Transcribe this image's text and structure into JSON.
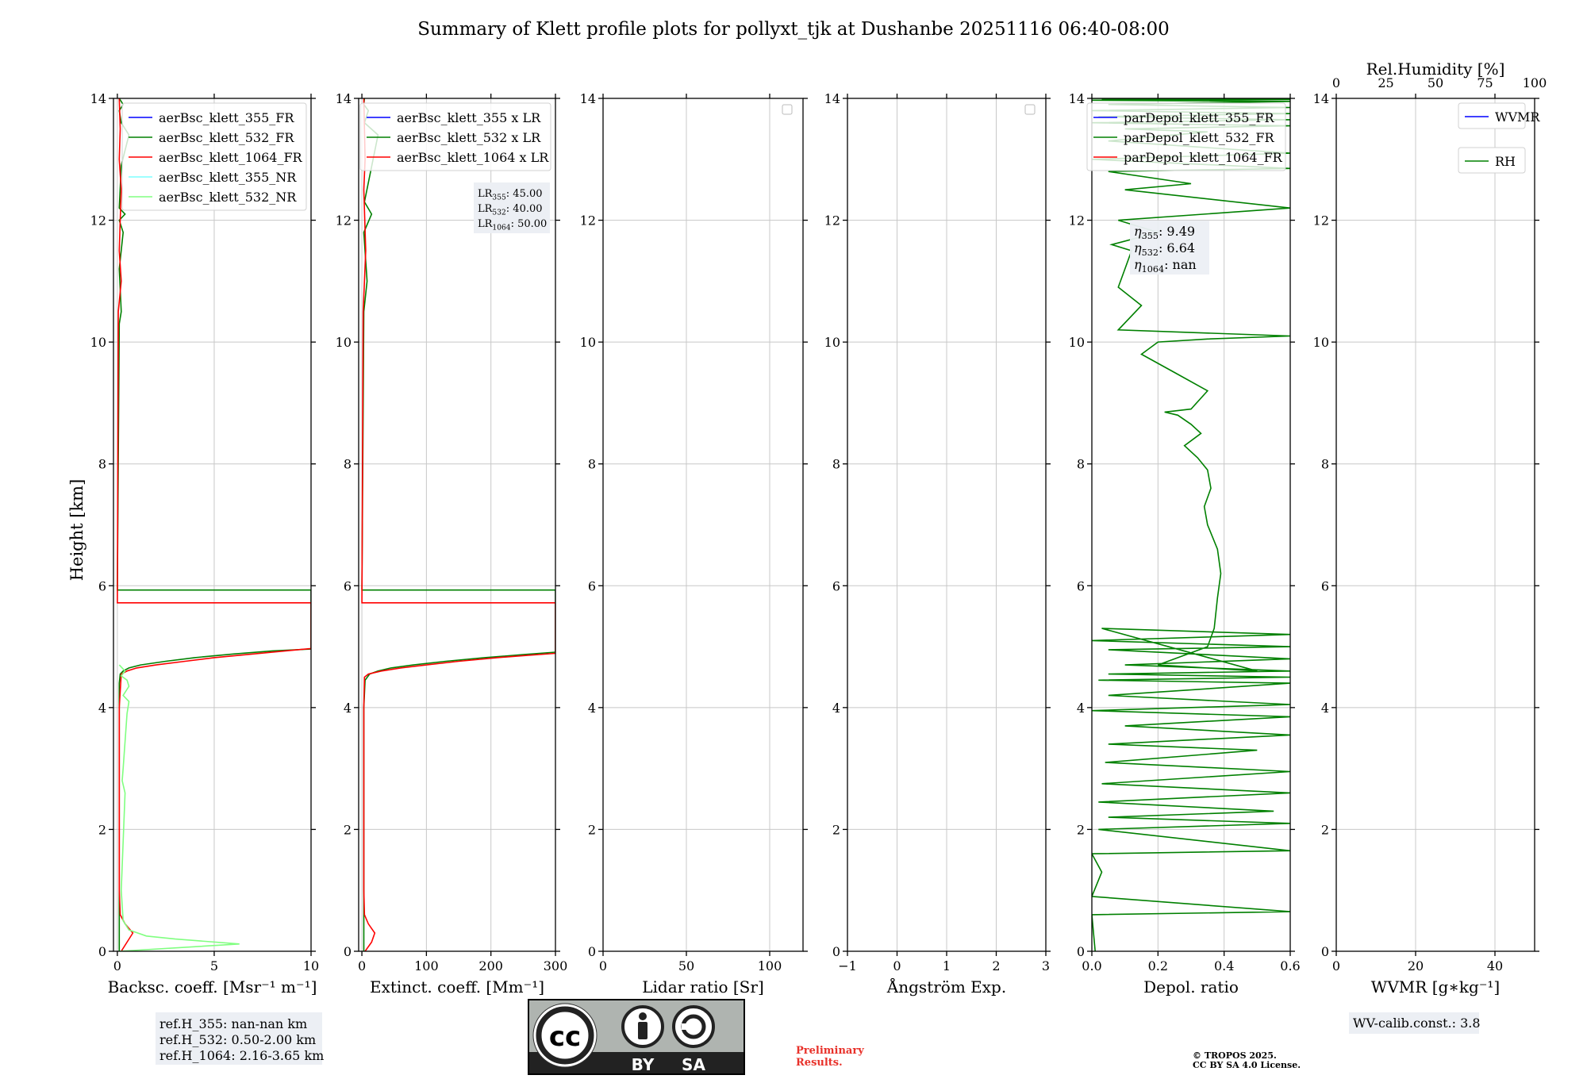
{
  "title": "Summary of Klett profile plots for pollyxt_tjk at Dushanbe 20251116 06:40-08:00",
  "y_axis_label": "Height [km]",
  "notes": {
    "ref_h": [
      "ref.H_355: nan-nan km",
      "ref.H_532: 0.50-2.00 km",
      "ref.H_1064: 2.16-3.65 km"
    ],
    "lidar_ratios": [
      "LR355: 45.00",
      "LR532: 40.00",
      "LR1064: 50.00"
    ],
    "eta": [
      "η355: 9.49",
      "η532: 6.64",
      "η1064: nan"
    ],
    "wv_calib": "WV-calib.const.: 3.8",
    "preliminary": [
      "Preliminary",
      "Results."
    ],
    "copyright": [
      "© TROPOS 2025.",
      "CC BY SA 4.0 License."
    ],
    "license_badge": [
      "cc",
      "BY",
      "SA"
    ]
  },
  "colors": {
    "blue": "#0000ff",
    "green": "#008000",
    "red": "#ff0000",
    "cyan": "#7fffff",
    "lightgreen": "#80ff80"
  },
  "chart_data": [
    {
      "type": "line",
      "id": "backscatter",
      "xlabel": "Backsc. coeff. [Msr⁻¹ m⁻¹]",
      "ylabel": "Height [km]",
      "xlim": [
        -0.2,
        10
      ],
      "ylim": [
        0,
        14
      ],
      "xticks": [
        0,
        5,
        10
      ],
      "xtick_labels": [
        "0",
        "5",
        "10"
      ],
      "yticks": [
        0,
        2,
        4,
        6,
        8,
        10,
        12,
        14
      ],
      "grid": true,
      "legend": "top-right",
      "series": [
        {
          "name": "aerBsc_klett_355_FR",
          "color": "#0000ff",
          "x": [],
          "y": []
        },
        {
          "name": "aerBsc_klett_532_FR",
          "color": "#008000",
          "x": [
            0.1,
            0.1,
            0.1,
            0.1,
            0.1,
            0.1,
            0.15,
            0.3,
            0.6,
            1.2,
            2.5,
            4,
            6,
            8,
            10,
            10,
            0,
            0.1,
            0.2,
            0.1,
            0.3,
            0.1,
            0.4,
            0.1,
            0.2,
            0.6,
            0.2,
            0.1,
            0.3,
            0.1
          ],
          "y": [
            0,
            1,
            2,
            3,
            4,
            4.4,
            4.55,
            4.6,
            4.65,
            4.7,
            4.76,
            4.82,
            4.88,
            4.93,
            4.96,
            5.93,
            5.93,
            10.3,
            10.5,
            11.2,
            11.8,
            12.0,
            12.1,
            12.2,
            12.9,
            13.4,
            13.6,
            13.8,
            13.9,
            14
          ]
        },
        {
          "name": "aerBsc_klett_1064_FR",
          "color": "#ff0000",
          "x": [
            0.2,
            0.5,
            0.8,
            0.4,
            0.15,
            0.1,
            0.1,
            0.1,
            0.2,
            0.5,
            1,
            2,
            3.5,
            5,
            7,
            9,
            10,
            10,
            0,
            0.05,
            0.2,
            0.1,
            0.15,
            0.2,
            0.1,
            0.15,
            0.1
          ],
          "y": [
            0,
            0.15,
            0.3,
            0.45,
            0.6,
            1,
            2,
            4,
            4.55,
            4.6,
            4.65,
            4.7,
            4.76,
            4.82,
            4.88,
            4.94,
            4.97,
            5.72,
            5.72,
            10.5,
            11,
            11.5,
            12,
            12.5,
            13,
            13.5,
            14
          ]
        },
        {
          "name": "aerBsc_klett_355_NR",
          "color": "#7fffff",
          "x": [],
          "y": []
        },
        {
          "name": "aerBsc_klett_532_NR",
          "color": "#80ff80",
          "x": [
            0.1,
            6.3,
            3,
            1.5,
            0.6,
            0.3,
            0.2,
            0.4,
            0.25,
            0.3,
            0.5,
            0.6,
            0.3,
            0.6,
            0.5,
            0.2,
            0.4,
            0.1
          ],
          "y": [
            0,
            0.12,
            0.2,
            0.25,
            0.35,
            0.5,
            1,
            2.6,
            2.8,
            3,
            3.9,
            4.1,
            4.2,
            4.35,
            4.45,
            4.52,
            4.6,
            4.7
          ]
        }
      ]
    },
    {
      "type": "line",
      "id": "extinction",
      "xlabel": "Extinct. coeff. [Mm⁻¹]",
      "xlim": [
        -5,
        300
      ],
      "ylim": [
        0,
        14
      ],
      "xticks": [
        0,
        100,
        200,
        300
      ],
      "xtick_labels": [
        "0",
        "100",
        "200",
        "300"
      ],
      "yticks": [
        0,
        2,
        4,
        6,
        8,
        10,
        12,
        14
      ],
      "grid": true,
      "legend": "top-right",
      "series": [
        {
          "name": "aerBsc_klett_355 x LR",
          "color": "#0000ff",
          "x": [],
          "y": []
        },
        {
          "name": "aerBsc_klett_532 x LR",
          "color": "#008000",
          "x": [
            3,
            3,
            3,
            3,
            3,
            5,
            12,
            25,
            45,
            80,
            130,
            190,
            250,
            300,
            300,
            0,
            3,
            8,
            3,
            15,
            4,
            25,
            4,
            10,
            3,
            4
          ],
          "y": [
            0,
            1,
            2,
            3,
            4,
            4.45,
            4.55,
            4.6,
            4.65,
            4.7,
            4.76,
            4.82,
            4.87,
            4.91,
            5.93,
            5.93,
            10.5,
            11,
            11.8,
            12.1,
            12.3,
            13.4,
            13.6,
            13.8,
            13.9,
            14
          ]
        },
        {
          "name": "aerBsc_klett_1064 x LR",
          "color": "#ff0000",
          "x": [
            5,
            15,
            20,
            10,
            4,
            3,
            3,
            4,
            10,
            30,
            60,
            100,
            150,
            210,
            260,
            300,
            300,
            0,
            2,
            6,
            3,
            5,
            3
          ],
          "y": [
            0,
            0.15,
            0.3,
            0.45,
            0.6,
            1,
            4,
            4.5,
            4.55,
            4.6,
            4.65,
            4.7,
            4.76,
            4.82,
            4.86,
            4.89,
            5.72,
            5.72,
            10.5,
            11.5,
            12.5,
            13,
            14
          ]
        }
      ]
    },
    {
      "type": "line",
      "id": "lidar_ratio",
      "xlabel": "Lidar ratio [Sr]",
      "xlim": [
        0,
        120
      ],
      "ylim": [
        0,
        14
      ],
      "xticks": [
        0,
        50,
        100
      ],
      "xtick_labels": [
        "0",
        "50",
        "100"
      ],
      "yticks": [
        0,
        2,
        4,
        6,
        8,
        10,
        12,
        14
      ],
      "grid": true,
      "legend": "top-right",
      "series": []
    },
    {
      "type": "line",
      "id": "angstrom",
      "xlabel": "Ångström Exp.",
      "xlim": [
        -1,
        3
      ],
      "ylim": [
        0,
        14
      ],
      "xticks": [
        -1,
        0,
        1,
        2,
        3
      ],
      "xtick_labels": [
        "−1",
        "0",
        "1",
        "2",
        "3"
      ],
      "yticks": [
        0,
        2,
        4,
        6,
        8,
        10,
        12,
        14
      ],
      "grid": true,
      "legend": "top-right",
      "series": []
    },
    {
      "type": "line",
      "id": "depol",
      "xlabel": "Depol. ratio",
      "xlim": [
        0,
        0.6
      ],
      "ylim": [
        0,
        14
      ],
      "xticks": [
        0,
        0.2,
        0.4,
        0.6
      ],
      "xtick_labels": [
        "0.0",
        "0.2",
        "0.4",
        "0.6"
      ],
      "yticks": [
        0,
        2,
        4,
        6,
        8,
        10,
        12,
        14
      ],
      "grid": true,
      "legend": "top-right",
      "series": [
        {
          "name": "parDepol_klett_355_FR",
          "color": "#0000ff",
          "x": [],
          "y": []
        },
        {
          "name": "parDepol_klett_532_FR",
          "color": "#008000",
          "x": [
            0.01,
            0.0,
            0.6,
            0.0,
            0.03,
            0.0,
            0.6,
            0.02,
            0.6,
            0.05,
            0.55,
            0.02,
            0.6,
            0.03,
            0.6,
            0.04,
            0.5,
            0.05,
            0.6,
            0.1,
            0.6,
            0.0,
            0.6,
            0.05,
            0.6,
            0.02,
            0.6,
            0.05,
            0.6,
            0.1,
            0.6,
            0.05,
            0.6,
            0.0,
            0.6,
            0.03,
            0.5,
            0.2,
            0.35,
            0.37,
            0.38,
            0.39,
            0.38,
            0.35,
            0.34,
            0.36,
            0.35,
            0.32,
            0.28,
            0.33,
            0.3,
            0.26,
            0.22,
            0.3,
            0.35,
            0.25,
            0.15,
            0.2,
            0.35,
            0.6,
            0.08,
            0.15,
            0.08,
            0.1,
            0.12,
            0.06,
            0.2,
            0.08,
            0.6,
            0.1,
            0.3,
            0.05,
            0.6,
            0.0,
            0.6,
            0.05,
            0.35,
            0.1,
            0.6,
            0.0,
            0.6,
            0.02,
            0.6,
            0.0,
            0.6,
            0.05,
            0.6,
            0.0,
            0.6,
            0.03,
            0.6,
            0.0,
            0.6
          ],
          "y": [
            0,
            0.6,
            0.65,
            0.9,
            1.3,
            1.6,
            1.65,
            2.0,
            2.1,
            2.2,
            2.3,
            2.45,
            2.6,
            2.75,
            2.95,
            3.1,
            3.3,
            3.4,
            3.55,
            3.7,
            3.85,
            3.95,
            4.05,
            4.2,
            4.4,
            4.45,
            4.5,
            4.55,
            4.6,
            4.7,
            4.8,
            4.95,
            5.0,
            5.1,
            5.2,
            5.3,
            4.6,
            4.7,
            5.0,
            5.3,
            5.8,
            6.2,
            6.6,
            7.0,
            7.3,
            7.6,
            7.9,
            8.1,
            8.3,
            8.5,
            8.65,
            8.8,
            8.85,
            8.9,
            9.2,
            9.5,
            9.8,
            10.0,
            10.05,
            10.1,
            10.2,
            10.6,
            10.9,
            11.2,
            11.5,
            11.6,
            11.8,
            12.0,
            12.2,
            12.5,
            12.6,
            12.8,
            12.85,
            13.0,
            13.1,
            13.3,
            13.45,
            13.5,
            13.55,
            13.6,
            13.65,
            13.7,
            13.75,
            13.8,
            13.85,
            13.9,
            13.95,
            13.97,
            13.98,
            13.99,
            14.0,
            14.0,
            14.0
          ]
        },
        {
          "name": "parDepol_klett_1064_FR",
          "color": "#ff0000",
          "x": [],
          "y": []
        }
      ]
    },
    {
      "type": "line",
      "id": "wvmr",
      "xlabel": "WVMR [g∗kg⁻¹]",
      "xlim": [
        0,
        50
      ],
      "ylim": [
        0,
        14
      ],
      "xticks": [
        0,
        20,
        40
      ],
      "xtick_labels": [
        "0",
        "20",
        "40"
      ],
      "top_axis": {
        "label": "Rel.Humidity [%]",
        "lim": [
          0,
          100
        ],
        "ticks": [
          0,
          25,
          50,
          75,
          100
        ],
        "tick_labels": [
          "0",
          "25",
          "50",
          "75",
          "100"
        ]
      },
      "yticks": [
        0,
        2,
        4,
        6,
        8,
        10,
        12,
        14
      ],
      "grid": true,
      "legends": [
        {
          "name": "WVMR",
          "color": "#0000ff",
          "placement": "top-right"
        },
        {
          "name": "RH",
          "color": "#008000",
          "placement": "top-right"
        }
      ],
      "series": []
    }
  ]
}
